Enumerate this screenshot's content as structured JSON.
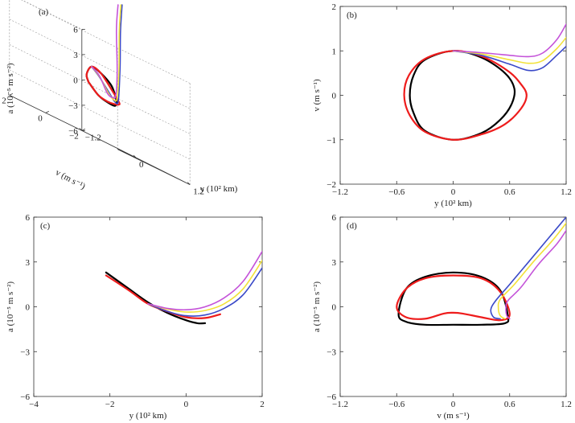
{
  "figure": {
    "colors": {
      "black": "#000000",
      "red": "#ee1c1c",
      "blue": "#3a49c8",
      "yellow": "#f2e23a",
      "magenta": "#c453d9",
      "axis": "#333333",
      "grid": "#9a9a9a"
    }
  },
  "chart_data": [
    {
      "id": "a",
      "panel_label": "(a)",
      "type": "line3d",
      "xlabel": "y (10² km)",
      "ylabel": "v (m s⁻¹)",
      "zlabel": "a (10⁻⁵ m s⁻²)",
      "x_ticks": [
        "-1.2",
        "0",
        "1.2"
      ],
      "y_ticks": [
        "-2",
        "0",
        "2"
      ],
      "z_ticks": [
        "6",
        "3",
        "0",
        "-3",
        "-6"
      ],
      "xlim": [
        -1.2,
        1.2
      ],
      "ylim": [
        -2,
        2
      ],
      "zlim": [
        -6,
        6
      ],
      "series": [
        {
          "name": "black",
          "color": "#000000",
          "x": [
            -0.45,
            -0.3,
            0,
            0.3,
            0.55,
            0.62,
            0.55,
            0.3,
            0,
            -0.3,
            -0.45
          ],
          "y": [
            0,
            0.7,
            1.0,
            0.8,
            0.3,
            0,
            -0.4,
            -0.9,
            -1.0,
            -0.75,
            0
          ],
          "z": [
            0.2,
            1.0,
            2.2,
            2.0,
            1.2,
            0.2,
            -0.6,
            -1.1,
            -1.1,
            -0.8,
            0.2
          ]
        },
        {
          "name": "red",
          "color": "#ee1c1c",
          "x": [
            -0.45,
            -0.3,
            0,
            0.3,
            0.6,
            0.78,
            0.6,
            0.3,
            0,
            -0.3,
            -0.45
          ],
          "y": [
            0,
            0.7,
            1.0,
            0.8,
            0.4,
            0,
            -0.5,
            -0.9,
            -1.0,
            -0.75,
            0
          ],
          "z": [
            0.2,
            1.0,
            2.2,
            2.0,
            0.7,
            -0.4,
            -0.7,
            -0.9,
            -1.0,
            -0.8,
            0.2
          ]
        },
        {
          "name": "blue",
          "color": "#3a49c8",
          "x": [
            0,
            0.3,
            0.6,
            0.8,
            0.95,
            1.1,
            1.2
          ],
          "y": [
            1.0,
            0.9,
            0.7,
            0.55,
            0.6,
            0.85,
            1.1
          ],
          "z": [
            2.2,
            1.4,
            0.2,
            -0.6,
            -0.2,
            3.8,
            8.0
          ]
        },
        {
          "name": "yellow",
          "color": "#f2e23a",
          "x": [
            0,
            0.3,
            0.6,
            0.8,
            0.95,
            1.1,
            1.2
          ],
          "y": [
            1.0,
            0.93,
            0.8,
            0.72,
            0.75,
            0.98,
            1.25
          ],
          "z": [
            2.2,
            1.5,
            0.1,
            -0.4,
            0.0,
            3.5,
            8.0
          ]
        },
        {
          "name": "magenta",
          "color": "#c453d9",
          "x": [
            0,
            0.3,
            0.6,
            0.8,
            0.95,
            1.1,
            1.2
          ],
          "y": [
            1.0,
            0.96,
            0.9,
            0.88,
            0.92,
            1.2,
            1.6
          ],
          "z": [
            2.2,
            1.6,
            0.0,
            -0.2,
            0.2,
            3.2,
            8.0
          ]
        }
      ]
    },
    {
      "id": "b",
      "panel_label": "(b)",
      "type": "line",
      "xlabel": "y (10² km)",
      "ylabel": "v (m s⁻¹)",
      "xlim": [
        -1.2,
        1.2
      ],
      "ylim": [
        -2,
        2
      ],
      "x_ticks": [
        -1.2,
        -0.6,
        0,
        0.6,
        1.2
      ],
      "y_ticks": [
        -2,
        -1,
        0,
        1,
        2
      ],
      "series": [
        {
          "name": "black",
          "color": "#000000",
          "closed": true,
          "x": [
            0,
            0.3,
            0.55,
            0.65,
            0.62,
            0.5,
            0.3,
            0,
            -0.3,
            -0.42,
            -0.46,
            -0.42,
            -0.3
          ],
          "y": [
            1.0,
            0.85,
            0.5,
            0.15,
            -0.2,
            -0.55,
            -0.85,
            -1.0,
            -0.8,
            -0.4,
            0,
            0.45,
            0.8
          ]
        },
        {
          "name": "red",
          "color": "#ee1c1c",
          "closed": true,
          "x": [
            0,
            0.3,
            0.58,
            0.72,
            0.78,
            0.72,
            0.55,
            0.3,
            0,
            -0.3,
            -0.46,
            -0.52,
            -0.47,
            -0.3
          ],
          "y": [
            1.0,
            0.88,
            0.55,
            0.25,
            0,
            -0.3,
            -0.65,
            -0.88,
            -1.0,
            -0.82,
            -0.45,
            0,
            0.45,
            0.82
          ]
        },
        {
          "name": "blue",
          "color": "#3a49c8",
          "x": [
            0,
            0.3,
            0.6,
            0.8,
            0.95,
            1.1,
            1.2
          ],
          "y": [
            1.0,
            0.9,
            0.7,
            0.56,
            0.62,
            0.9,
            1.1
          ]
        },
        {
          "name": "yellow",
          "color": "#f2e23a",
          "x": [
            0,
            0.3,
            0.6,
            0.8,
            0.95,
            1.1,
            1.2
          ],
          "y": [
            1.0,
            0.93,
            0.8,
            0.72,
            0.78,
            1.05,
            1.3
          ]
        },
        {
          "name": "magenta",
          "color": "#c453d9",
          "x": [
            0,
            0.3,
            0.6,
            0.8,
            0.95,
            1.1,
            1.2
          ],
          "y": [
            1.0,
            0.96,
            0.9,
            0.87,
            0.95,
            1.25,
            1.6
          ]
        }
      ]
    },
    {
      "id": "c",
      "panel_label": "(c)",
      "type": "line",
      "xlabel": "y (10² km)",
      "ylabel": "a (10⁻⁵ m s⁻²)",
      "xlim": [
        -4,
        2
      ],
      "ylim": [
        -6,
        6
      ],
      "x_ticks": [
        -4,
        -2,
        0,
        2
      ],
      "y_ticks": [
        -6,
        -3,
        0,
        3,
        6
      ],
      "series": [
        {
          "name": "black",
          "color": "#000000",
          "x": [
            -2.1,
            -1.5,
            -1.0,
            -0.5,
            0,
            0.3,
            0.5
          ],
          "y": [
            2.3,
            1.2,
            0.3,
            -0.4,
            -0.9,
            -1.1,
            -1.1
          ]
        },
        {
          "name": "red",
          "color": "#ee1c1c",
          "x": [
            -2.1,
            -1.5,
            -1.0,
            -0.5,
            0,
            0.5,
            0.9
          ],
          "y": [
            2.1,
            1.1,
            0.2,
            -0.3,
            -0.7,
            -0.75,
            -0.5
          ]
        },
        {
          "name": "blue",
          "color": "#3a49c8",
          "x": [
            -1.0,
            -0.5,
            0,
            0.5,
            1.0,
            1.5,
            2.0
          ],
          "y": [
            0.2,
            -0.3,
            -0.6,
            -0.55,
            -0.1,
            0.8,
            2.6
          ]
        },
        {
          "name": "yellow",
          "color": "#f2e23a",
          "x": [
            -1.0,
            -0.5,
            0,
            0.5,
            1.0,
            1.5,
            2.0
          ],
          "y": [
            0.2,
            -0.15,
            -0.35,
            -0.25,
            0.2,
            1.2,
            3.1
          ]
        },
        {
          "name": "magenta",
          "color": "#c453d9",
          "x": [
            -1.0,
            -0.5,
            0,
            0.5,
            1.0,
            1.5,
            2.0
          ],
          "y": [
            0.2,
            -0.1,
            -0.2,
            0.0,
            0.6,
            1.7,
            3.7
          ]
        }
      ]
    },
    {
      "id": "d",
      "panel_label": "(d)",
      "type": "line",
      "xlabel": "v (m s⁻¹)",
      "ylabel": "a (10⁻⁵ m s⁻²)",
      "xlim": [
        -1.2,
        1.2
      ],
      "ylim": [
        -6,
        6
      ],
      "x_ticks": [
        -1.2,
        -0.6,
        0,
        0.6,
        1.2
      ],
      "y_ticks": [
        -6,
        -3,
        0,
        3,
        6
      ],
      "series": [
        {
          "name": "black",
          "color": "#000000",
          "closed": true,
          "x": [
            -0.58,
            -0.5,
            -0.3,
            0,
            0.3,
            0.5,
            0.58,
            0.55,
            0.3,
            0,
            -0.3,
            -0.5
          ],
          "y": [
            -0.5,
            1.2,
            2.0,
            2.3,
            2.0,
            1.1,
            -0.6,
            -1.1,
            -1.2,
            -1.2,
            -1.2,
            -1.0
          ]
        },
        {
          "name": "red",
          "color": "#ee1c1c",
          "closed": true,
          "x": [
            -0.6,
            -0.5,
            -0.3,
            0,
            0.3,
            0.5,
            0.6,
            0.5,
            0.3,
            0.1,
            0,
            -0.1,
            -0.3,
            -0.5
          ],
          "y": [
            0,
            1.2,
            1.9,
            2.1,
            1.9,
            1.0,
            -0.5,
            -0.9,
            -0.7,
            -0.45,
            -0.4,
            -0.45,
            -0.8,
            -0.7
          ]
        },
        {
          "name": "blue",
          "color": "#3a49c8",
          "x": [
            0.5,
            0.43,
            0.4,
            0.45,
            0.6,
            0.8,
            1.0,
            1.2
          ],
          "y": [
            -0.8,
            -0.7,
            -0.2,
            0.4,
            1.5,
            3.0,
            4.5,
            6.0
          ]
        },
        {
          "name": "yellow",
          "color": "#f2e23a",
          "x": [
            0.55,
            0.5,
            0.48,
            0.5,
            0.65,
            0.85,
            1.05,
            1.2
          ],
          "y": [
            -0.8,
            -0.6,
            -0.1,
            0.5,
            1.5,
            3.0,
            4.4,
            5.6
          ]
        },
        {
          "name": "magenta",
          "color": "#c453d9",
          "x": [
            0.6,
            0.57,
            0.56,
            0.58,
            0.72,
            0.9,
            1.1,
            1.2
          ],
          "y": [
            -0.8,
            -0.6,
            -0.1,
            0.4,
            1.3,
            2.8,
            4.2,
            5.1
          ]
        }
      ]
    }
  ]
}
